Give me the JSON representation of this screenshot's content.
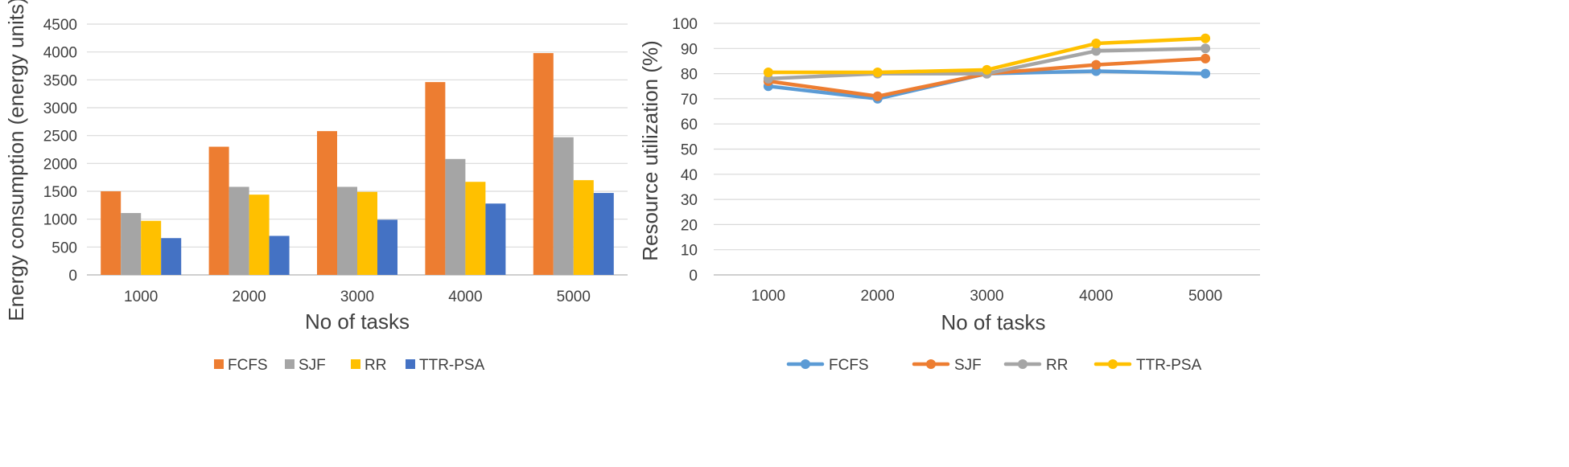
{
  "chart_data": [
    {
      "type": "bar",
      "title": "",
      "xlabel": "No of tasks",
      "ylabel": "Energy consumption (energy units)",
      "categories": [
        "1000",
        "2000",
        "3000",
        "4000",
        "5000"
      ],
      "ylim": [
        0,
        4500
      ],
      "yticks": [
        0,
        500,
        1000,
        1500,
        2000,
        2500,
        3000,
        3500,
        4000,
        4500
      ],
      "grid": true,
      "legend_position": "bottom",
      "series": [
        {
          "name": "FCFS",
          "color": "#ED7D31",
          "values": [
            1500,
            2300,
            2580,
            3460,
            3980
          ]
        },
        {
          "name": "SJF",
          "color": "#A5A5A5",
          "values": [
            1110,
            1580,
            1580,
            2080,
            2470
          ]
        },
        {
          "name": "RR",
          "color": "#FFC000",
          "values": [
            970,
            1440,
            1490,
            1670,
            1700
          ]
        },
        {
          "name": "TTR-PSA",
          "color": "#4472C4",
          "values": [
            660,
            700,
            990,
            1280,
            1470
          ]
        }
      ]
    },
    {
      "type": "line",
      "title": "",
      "xlabel": "No of tasks",
      "ylabel": "Resource  utilization (%)",
      "categories": [
        "1000",
        "2000",
        "3000",
        "4000",
        "5000"
      ],
      "ylim": [
        0,
        100
      ],
      "yticks": [
        0,
        10,
        20,
        30,
        40,
        50,
        60,
        70,
        80,
        90,
        100
      ],
      "grid": true,
      "legend_position": "bottom",
      "series": [
        {
          "name": "FCFS",
          "color": "#5B9BD5",
          "values": [
            75,
            70,
            80,
            81,
            80
          ]
        },
        {
          "name": "SJF",
          "color": "#ED7D31",
          "values": [
            77,
            71,
            80,
            83.5,
            86
          ]
        },
        {
          "name": "RR",
          "color": "#A5A5A5",
          "values": [
            78,
            80,
            80,
            89,
            90
          ]
        },
        {
          "name": "TTR-PSA",
          "color": "#FFC000",
          "values": [
            80.5,
            80.5,
            81.5,
            92,
            94
          ]
        }
      ]
    }
  ]
}
